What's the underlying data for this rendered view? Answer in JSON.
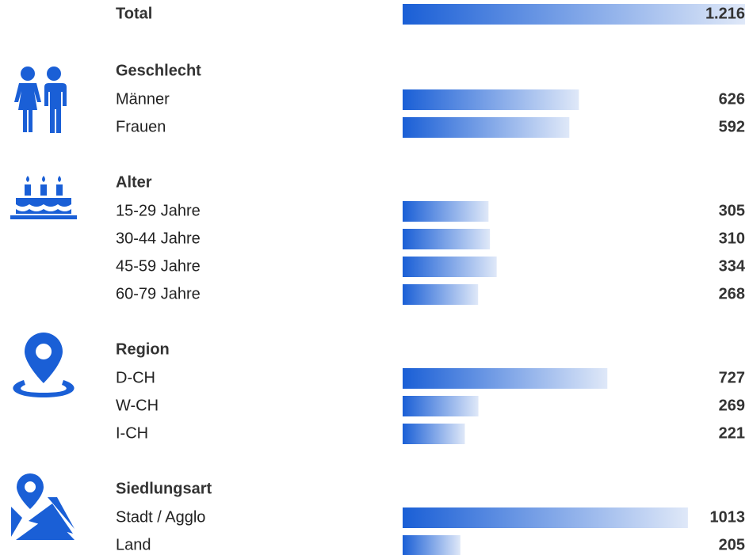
{
  "chart_data": {
    "type": "bar",
    "color_start": "#1a5fd6",
    "color_end": "#dfe8f8",
    "total": {
      "label": "Total",
      "value": 1216,
      "value_label": "1.216"
    },
    "groups": [
      {
        "title": "Geschlecht",
        "categories": [
          "Männer",
          "Frauen"
        ],
        "values": [
          626,
          592
        ]
      },
      {
        "title": "Alter",
        "categories": [
          "15-29 Jahre",
          "30-44 Jahre",
          "45-59 Jahre",
          "60-79 Jahre"
        ],
        "values": [
          305,
          310,
          334,
          268
        ]
      },
      {
        "title": "Region",
        "categories": [
          "D-CH",
          "W-CH",
          "I-CH"
        ],
        "values": [
          727,
          269,
          221
        ]
      },
      {
        "title": "Siedlungsart",
        "categories": [
          "Stadt / Agglo",
          "Land"
        ],
        "values": [
          1013,
          205
        ]
      }
    ]
  }
}
